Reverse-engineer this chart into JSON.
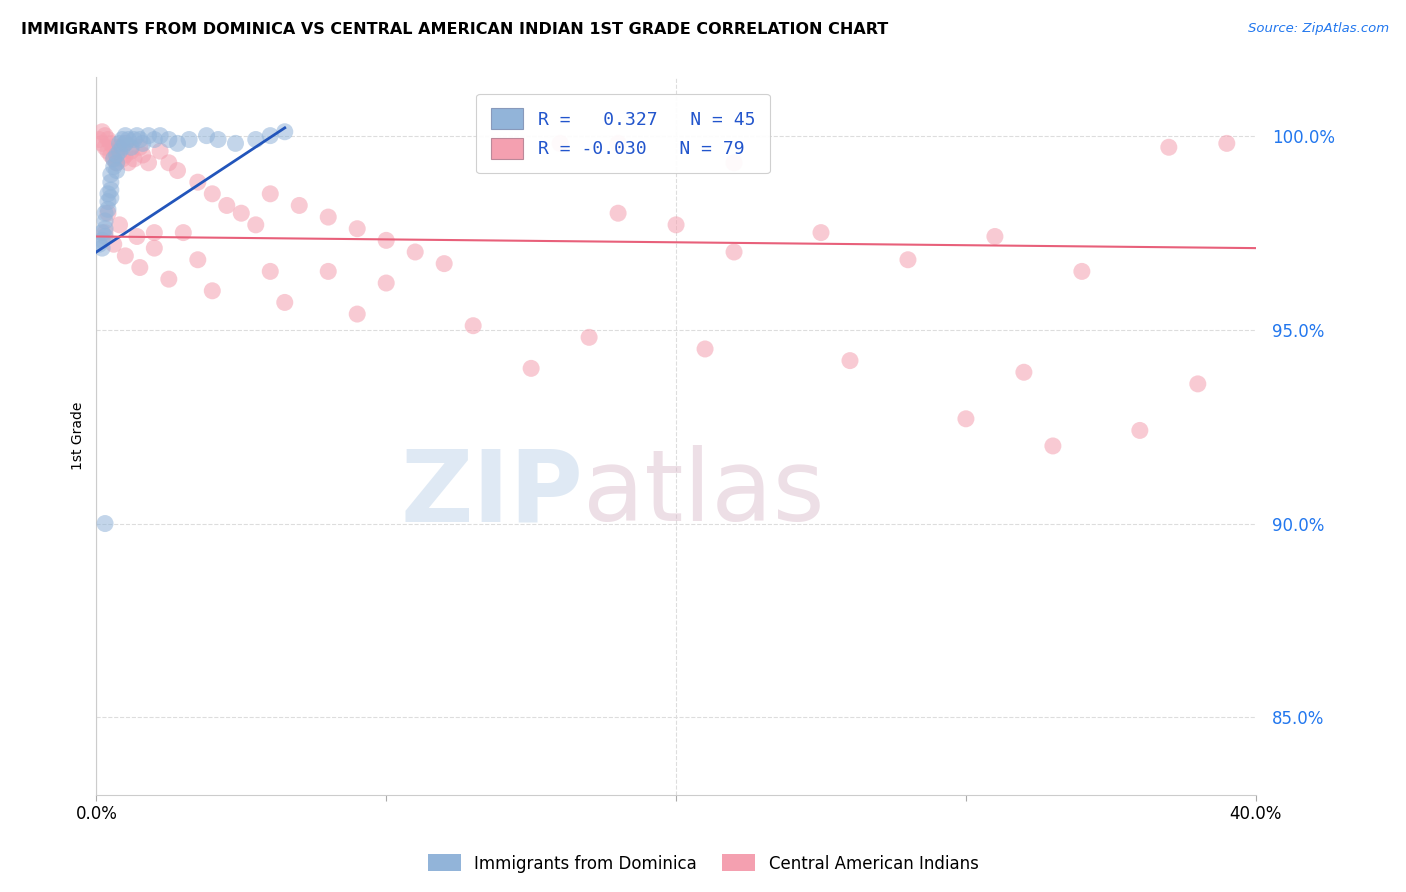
{
  "title": "IMMIGRANTS FROM DOMINICA VS CENTRAL AMERICAN INDIAN 1ST GRADE CORRELATION CHART",
  "source": "Source: ZipAtlas.com",
  "ylabel": "1st Grade",
  "ytick_labels": [
    "100.0%",
    "95.0%",
    "90.0%",
    "85.0%"
  ],
  "ytick_values": [
    1.0,
    0.95,
    0.9,
    0.85
  ],
  "xlim": [
    0.0,
    0.4
  ],
  "ylim": [
    0.83,
    1.015
  ],
  "legend1_label": "R =   0.327   N = 45",
  "legend2_label": "R = -0.030   N = 79",
  "legend_series1": "Immigrants from Dominica",
  "legend_series2": "Central American Indians",
  "watermark_zip": "ZIP",
  "watermark_atlas": "atlas",
  "blue_color": "#92B4D9",
  "pink_color": "#F4A0B0",
  "trendline_blue": "#2255BB",
  "trendline_pink": "#E8607A",
  "blue_trend_x": [
    0.0,
    0.065
  ],
  "blue_trend_y": [
    0.97,
    1.002
  ],
  "pink_trend_x": [
    0.0,
    0.4
  ],
  "pink_trend_y": [
    0.974,
    0.971
  ],
  "blue_x": [
    0.001,
    0.002,
    0.002,
    0.002,
    0.003,
    0.003,
    0.003,
    0.003,
    0.004,
    0.004,
    0.004,
    0.005,
    0.005,
    0.005,
    0.005,
    0.006,
    0.006,
    0.007,
    0.007,
    0.007,
    0.008,
    0.008,
    0.009,
    0.009,
    0.01,
    0.01,
    0.011,
    0.012,
    0.013,
    0.014,
    0.015,
    0.016,
    0.018,
    0.02,
    0.022,
    0.025,
    0.028,
    0.032,
    0.038,
    0.042,
    0.048,
    0.055,
    0.06,
    0.065,
    0.003
  ],
  "blue_y": [
    0.972,
    0.975,
    0.973,
    0.971,
    0.978,
    0.98,
    0.976,
    0.974,
    0.983,
    0.985,
    0.981,
    0.988,
    0.99,
    0.986,
    0.984,
    0.992,
    0.994,
    0.993,
    0.991,
    0.995,
    0.996,
    0.998,
    0.997,
    0.999,
    1.0,
    0.998,
    0.999,
    0.997,
    0.999,
    1.0,
    0.999,
    0.998,
    1.0,
    0.999,
    1.0,
    0.999,
    0.998,
    0.999,
    1.0,
    0.999,
    0.998,
    0.999,
    1.0,
    1.001,
    0.9
  ],
  "pink_x": [
    0.001,
    0.002,
    0.002,
    0.003,
    0.003,
    0.004,
    0.004,
    0.005,
    0.005,
    0.006,
    0.006,
    0.007,
    0.007,
    0.008,
    0.009,
    0.01,
    0.01,
    0.011,
    0.012,
    0.013,
    0.015,
    0.016,
    0.018,
    0.02,
    0.022,
    0.025,
    0.028,
    0.03,
    0.035,
    0.04,
    0.045,
    0.05,
    0.055,
    0.06,
    0.07,
    0.08,
    0.09,
    0.1,
    0.11,
    0.12,
    0.14,
    0.16,
    0.18,
    0.2,
    0.22,
    0.25,
    0.28,
    0.31,
    0.34,
    0.37,
    0.39,
    0.003,
    0.006,
    0.01,
    0.015,
    0.025,
    0.04,
    0.065,
    0.09,
    0.13,
    0.17,
    0.21,
    0.26,
    0.32,
    0.38,
    0.004,
    0.008,
    0.014,
    0.02,
    0.035,
    0.06,
    0.1,
    0.15,
    0.22,
    0.3,
    0.36,
    0.08,
    0.18,
    0.33
  ],
  "pink_y": [
    0.999,
    1.001,
    0.998,
    1.0,
    0.997,
    0.999,
    0.996,
    0.998,
    0.995,
    0.997,
    0.994,
    0.996,
    0.993,
    0.997,
    0.994,
    0.998,
    0.995,
    0.993,
    0.996,
    0.994,
    0.997,
    0.995,
    0.993,
    0.975,
    0.996,
    0.993,
    0.991,
    0.975,
    0.988,
    0.985,
    0.982,
    0.98,
    0.977,
    0.985,
    0.982,
    0.979,
    0.976,
    0.973,
    0.97,
    0.967,
    0.997,
    0.998,
    0.98,
    0.977,
    0.993,
    0.975,
    0.968,
    0.974,
    0.965,
    0.997,
    0.998,
    0.975,
    0.972,
    0.969,
    0.966,
    0.963,
    0.96,
    0.957,
    0.954,
    0.951,
    0.948,
    0.945,
    0.942,
    0.939,
    0.936,
    0.98,
    0.977,
    0.974,
    0.971,
    0.968,
    0.965,
    0.962,
    0.94,
    0.97,
    0.927,
    0.924,
    0.965,
    0.998,
    0.92
  ]
}
